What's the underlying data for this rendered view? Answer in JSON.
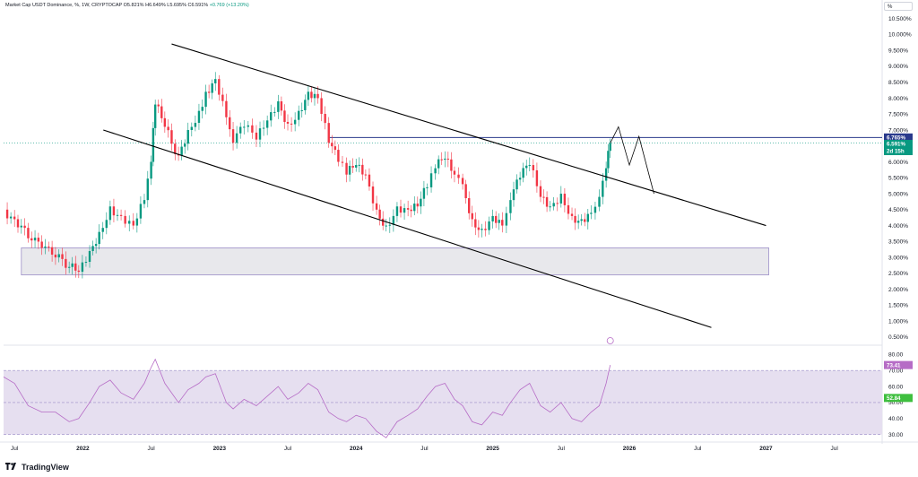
{
  "legend": {
    "symbol": "Market Cap USDT Dominance, %, 1W, CRYPTOCAP",
    "open": "O5.821%",
    "high": "H6.649%",
    "low": "L5.695%",
    "close": "C6.591%",
    "change": "+0.769 (+13.20%)"
  },
  "scale_button": "%",
  "price_badges": {
    "level": "6.765%",
    "current": "6.591%",
    "countdown": "2d 15h"
  },
  "rsi_badges": {
    "rsi": "73.41",
    "ma": "52.84"
  },
  "brand": "TradingView",
  "colors": {
    "up": "#089981",
    "down": "#f23645",
    "trendline": "#000000",
    "level_line": "#2a3a8c",
    "rsi_line": "#b66cc6",
    "rsi_band": "#e6dff0"
  },
  "chart_data": [
    {
      "type": "candlestick",
      "y_axis_ticks": [
        "10.500%",
        "10.000%",
        "9.500%",
        "9.000%",
        "8.500%",
        "8.000%",
        "7.500%",
        "7.000%",
        "6.500%",
        "6.000%",
        "5.500%",
        "5.000%",
        "4.500%",
        "4.000%",
        "3.500%",
        "3.000%",
        "2.500%",
        "2.000%",
        "1.500%",
        "1.000%",
        "0.500%"
      ],
      "ylim": [
        0.3,
        10.8
      ],
      "x_axis_labels": [
        "Jul",
        "2022",
        "Jul",
        "2023",
        "Jul",
        "2024",
        "Jul",
        "2025",
        "Jul",
        "2026",
        "Jul",
        "2027",
        "Jul"
      ],
      "x_range": [
        2021.42,
        2027.85
      ],
      "last_close": 6.591,
      "horizontal_level": 6.765,
      "close_series": [
        {
          "x": 2021.42,
          "y": 4.5
        },
        {
          "x": 2021.5,
          "y": 4.2
        },
        {
          "x": 2021.6,
          "y": 3.6
        },
        {
          "x": 2021.7,
          "y": 3.3
        },
        {
          "x": 2021.8,
          "y": 3.0
        },
        {
          "x": 2021.9,
          "y": 2.7
        },
        {
          "x": 2021.97,
          "y": 2.55
        },
        {
          "x": 2022.05,
          "y": 3.2
        },
        {
          "x": 2022.12,
          "y": 3.8
        },
        {
          "x": 2022.2,
          "y": 4.6
        },
        {
          "x": 2022.28,
          "y": 4.3
        },
        {
          "x": 2022.37,
          "y": 4.0
        },
        {
          "x": 2022.45,
          "y": 4.8
        },
        {
          "x": 2022.5,
          "y": 6.0
        },
        {
          "x": 2022.53,
          "y": 7.8
        },
        {
          "x": 2022.6,
          "y": 7.1
        },
        {
          "x": 2022.7,
          "y": 6.2
        },
        {
          "x": 2022.77,
          "y": 7.0
        },
        {
          "x": 2022.85,
          "y": 7.6
        },
        {
          "x": 2022.9,
          "y": 8.2
        },
        {
          "x": 2022.97,
          "y": 8.6
        },
        {
          "x": 2023.05,
          "y": 7.4
        },
        {
          "x": 2023.1,
          "y": 6.6
        },
        {
          "x": 2023.18,
          "y": 7.1
        },
        {
          "x": 2023.27,
          "y": 6.7
        },
        {
          "x": 2023.35,
          "y": 7.3
        },
        {
          "x": 2023.43,
          "y": 7.9
        },
        {
          "x": 2023.5,
          "y": 7.2
        },
        {
          "x": 2023.58,
          "y": 7.6
        },
        {
          "x": 2023.65,
          "y": 8.2
        },
        {
          "x": 2023.72,
          "y": 8.0
        },
        {
          "x": 2023.8,
          "y": 6.6
        },
        {
          "x": 2023.87,
          "y": 6.0
        },
        {
          "x": 2023.93,
          "y": 5.6
        },
        {
          "x": 2024.0,
          "y": 5.9
        },
        {
          "x": 2024.07,
          "y": 5.6
        },
        {
          "x": 2024.15,
          "y": 4.5
        },
        {
          "x": 2024.22,
          "y": 4.0
        },
        {
          "x": 2024.3,
          "y": 4.6
        },
        {
          "x": 2024.38,
          "y": 4.5
        },
        {
          "x": 2024.45,
          "y": 4.6
        },
        {
          "x": 2024.52,
          "y": 5.2
        },
        {
          "x": 2024.58,
          "y": 5.8
        },
        {
          "x": 2024.65,
          "y": 6.1
        },
        {
          "x": 2024.72,
          "y": 5.6
        },
        {
          "x": 2024.78,
          "y": 5.3
        },
        {
          "x": 2024.85,
          "y": 4.2
        },
        {
          "x": 2024.92,
          "y": 3.9
        },
        {
          "x": 2025.0,
          "y": 4.3
        },
        {
          "x": 2025.07,
          "y": 4.0
        },
        {
          "x": 2025.13,
          "y": 4.8
        },
        {
          "x": 2025.2,
          "y": 5.5
        },
        {
          "x": 2025.27,
          "y": 5.9
        },
        {
          "x": 2025.35,
          "y": 4.9
        },
        {
          "x": 2025.42,
          "y": 4.6
        },
        {
          "x": 2025.5,
          "y": 5.0
        },
        {
          "x": 2025.58,
          "y": 4.3
        },
        {
          "x": 2025.65,
          "y": 4.2
        },
        {
          "x": 2025.72,
          "y": 4.4
        },
        {
          "x": 2025.78,
          "y": 4.9
        },
        {
          "x": 2025.83,
          "y": 5.8
        },
        {
          "x": 2025.86,
          "y": 6.591
        }
      ],
      "projection": [
        {
          "x": 2025.86,
          "y": 6.591
        },
        {
          "x": 2025.92,
          "y": 7.1
        },
        {
          "x": 2026.0,
          "y": 5.9
        },
        {
          "x": 2026.07,
          "y": 6.8
        },
        {
          "x": 2026.18,
          "y": 5.0
        }
      ],
      "support_zone": {
        "x_from": 2021.55,
        "x_to": 2027.02,
        "y_from": 2.45,
        "y_to": 3.3
      },
      "trendlines": [
        {
          "name": "upper",
          "from": {
            "x": 2022.65,
            "y": 9.7
          },
          "to": {
            "x": 2027.0,
            "y": 4.0
          }
        },
        {
          "name": "lower",
          "from": {
            "x": 2022.15,
            "y": 7.0
          },
          "to": {
            "x": 2026.6,
            "y": 0.8
          }
        }
      ]
    },
    {
      "type": "line",
      "indicator": "RSI",
      "y_axis_ticks": [
        "80.00",
        "70.00",
        "60.00",
        "50.00",
        "40.00",
        "30.00"
      ],
      "ylim": [
        27,
        83
      ],
      "levels": [
        70,
        50,
        30
      ],
      "last_value": 73.41,
      "ma_value": 52.84,
      "series": [
        {
          "x": 2021.42,
          "y": 66
        },
        {
          "x": 2021.5,
          "y": 62
        },
        {
          "x": 2021.6,
          "y": 48
        },
        {
          "x": 2021.7,
          "y": 44
        },
        {
          "x": 2021.8,
          "y": 44
        },
        {
          "x": 2021.9,
          "y": 38
        },
        {
          "x": 2021.97,
          "y": 40
        },
        {
          "x": 2022.05,
          "y": 50
        },
        {
          "x": 2022.12,
          "y": 60
        },
        {
          "x": 2022.2,
          "y": 64
        },
        {
          "x": 2022.28,
          "y": 56
        },
        {
          "x": 2022.37,
          "y": 52
        },
        {
          "x": 2022.45,
          "y": 62
        },
        {
          "x": 2022.5,
          "y": 72
        },
        {
          "x": 2022.53,
          "y": 77
        },
        {
          "x": 2022.6,
          "y": 62
        },
        {
          "x": 2022.7,
          "y": 50
        },
        {
          "x": 2022.77,
          "y": 58
        },
        {
          "x": 2022.85,
          "y": 62
        },
        {
          "x": 2022.9,
          "y": 66
        },
        {
          "x": 2022.97,
          "y": 68
        },
        {
          "x": 2023.05,
          "y": 50
        },
        {
          "x": 2023.1,
          "y": 46
        },
        {
          "x": 2023.18,
          "y": 52
        },
        {
          "x": 2023.27,
          "y": 48
        },
        {
          "x": 2023.35,
          "y": 54
        },
        {
          "x": 2023.43,
          "y": 60
        },
        {
          "x": 2023.5,
          "y": 52
        },
        {
          "x": 2023.58,
          "y": 56
        },
        {
          "x": 2023.65,
          "y": 62
        },
        {
          "x": 2023.72,
          "y": 58
        },
        {
          "x": 2023.8,
          "y": 44
        },
        {
          "x": 2023.87,
          "y": 40
        },
        {
          "x": 2023.93,
          "y": 38
        },
        {
          "x": 2024.0,
          "y": 42
        },
        {
          "x": 2024.07,
          "y": 40
        },
        {
          "x": 2024.15,
          "y": 32
        },
        {
          "x": 2024.22,
          "y": 28
        },
        {
          "x": 2024.3,
          "y": 38
        },
        {
          "x": 2024.38,
          "y": 42
        },
        {
          "x": 2024.45,
          "y": 46
        },
        {
          "x": 2024.52,
          "y": 54
        },
        {
          "x": 2024.58,
          "y": 60
        },
        {
          "x": 2024.65,
          "y": 62
        },
        {
          "x": 2024.72,
          "y": 52
        },
        {
          "x": 2024.78,
          "y": 48
        },
        {
          "x": 2024.85,
          "y": 38
        },
        {
          "x": 2024.92,
          "y": 36
        },
        {
          "x": 2025.0,
          "y": 44
        },
        {
          "x": 2025.07,
          "y": 42
        },
        {
          "x": 2025.13,
          "y": 50
        },
        {
          "x": 2025.2,
          "y": 58
        },
        {
          "x": 2025.27,
          "y": 62
        },
        {
          "x": 2025.35,
          "y": 48
        },
        {
          "x": 2025.42,
          "y": 44
        },
        {
          "x": 2025.5,
          "y": 50
        },
        {
          "x": 2025.58,
          "y": 40
        },
        {
          "x": 2025.65,
          "y": 38
        },
        {
          "x": 2025.72,
          "y": 44
        },
        {
          "x": 2025.78,
          "y": 48
        },
        {
          "x": 2025.83,
          "y": 62
        },
        {
          "x": 2025.86,
          "y": 73.41
        }
      ]
    }
  ]
}
